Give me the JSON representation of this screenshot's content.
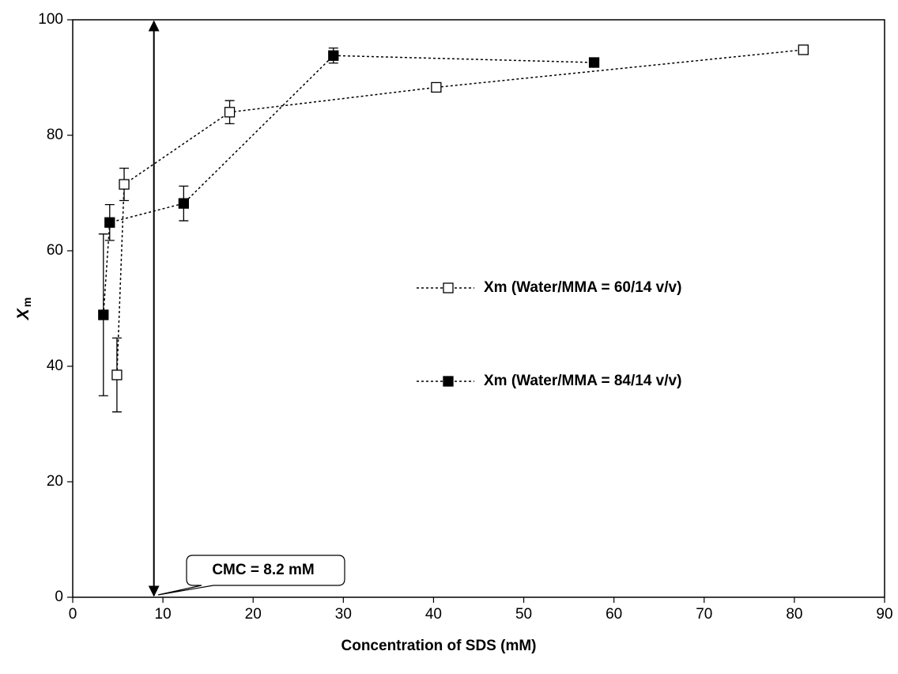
{
  "chart_data": {
    "type": "scatter",
    "xlabel": "Concentration of SDS (mM)",
    "ylabel": "X",
    "ylabel_sub": "m",
    "xlim": [
      0,
      90
    ],
    "xticks": [
      0,
      10,
      20,
      30,
      40,
      50,
      60,
      70,
      80,
      90
    ],
    "ylim": [
      0,
      100
    ],
    "yticks": [
      0,
      20,
      40,
      60,
      80,
      100
    ],
    "legend": "right",
    "series": [
      {
        "name": "Xm (Water/MMA = 60/14 v/v)",
        "color": "#000000",
        "marker": "open-square",
        "x": [
          4.9,
          5.7,
          17.4,
          40.3,
          81.0
        ],
        "values": [
          38.5,
          71.5,
          84.0,
          88.3,
          94.8
        ],
        "errors": [
          6.4,
          2.8,
          2.0,
          0.6,
          0.8
        ]
      },
      {
        "name": "Xm (Water/MMA = 84/14 v/v)",
        "color": "#000000",
        "marker": "filled-square",
        "x": [
          3.4,
          4.1,
          12.3,
          28.9,
          57.8
        ],
        "values": [
          48.9,
          64.9,
          68.2,
          93.8,
          92.6
        ],
        "errors": [
          14.0,
          3.1,
          3.0,
          1.3,
          0.5
        ]
      }
    ],
    "annotation": {
      "text": "CMC = 8.2 mM",
      "x": 9.0
    }
  }
}
